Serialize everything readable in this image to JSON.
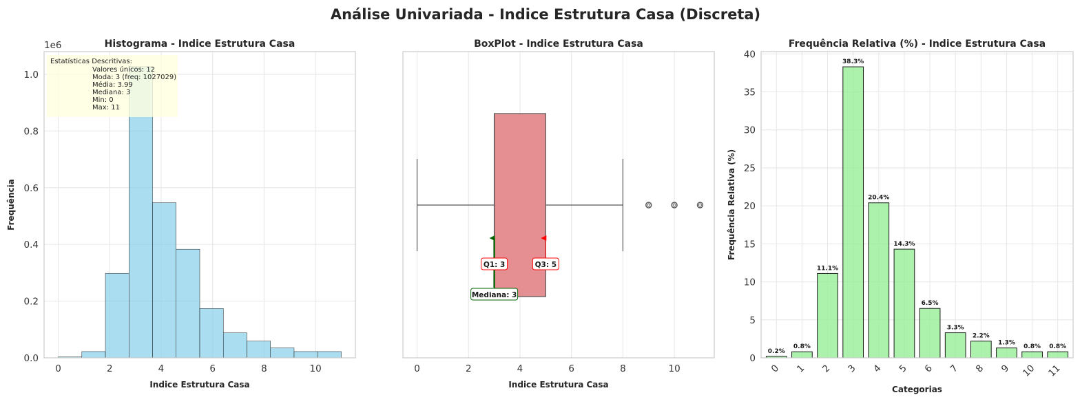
{
  "figure": {
    "title": "Análise Univariada - Indice Estrutura Casa (Discreta)"
  },
  "colors": {
    "histogram": "#87ceeb",
    "box": "#e07b7f",
    "bars": "#90ee90",
    "median_arrow": "#006400",
    "quartile_arrow": "#ff0000",
    "stats_box": "#ffffe0"
  },
  "chart_data": [
    {
      "type": "bar",
      "title": "Histograma - Indice Estrutura Casa",
      "xlabel": "Indice Estrutura Casa",
      "ylabel": "Frequência",
      "y_scale_label": "1e6",
      "xlim": [
        -0.55,
        11.55
      ],
      "ylim": [
        0,
        1.08
      ],
      "grid": true,
      "bins": [
        {
          "start": 0.0,
          "end": 0.9167,
          "value": 0.003
        },
        {
          "start": 0.9167,
          "end": 1.8333,
          "value": 0.022
        },
        {
          "start": 1.8333,
          "end": 2.75,
          "value": 0.298
        },
        {
          "start": 2.75,
          "end": 3.6667,
          "value": 1.027
        },
        {
          "start": 3.6667,
          "end": 4.5833,
          "value": 0.547
        },
        {
          "start": 4.5833,
          "end": 5.5,
          "value": 0.383
        },
        {
          "start": 5.5,
          "end": 6.4167,
          "value": 0.174
        },
        {
          "start": 6.4167,
          "end": 7.3333,
          "value": 0.088
        },
        {
          "start": 7.3333,
          "end": 8.25,
          "value": 0.059
        },
        {
          "start": 8.25,
          "end": 9.1667,
          "value": 0.035
        },
        {
          "start": 9.1667,
          "end": 10.0833,
          "value": 0.022
        },
        {
          "start": 10.0833,
          "end": 11.0,
          "value": 0.022
        }
      ],
      "x_ticks": [
        0,
        2,
        4,
        6,
        8,
        10
      ],
      "y_ticks": [
        0.0,
        0.2,
        0.4,
        0.6,
        0.8,
        1.0
      ],
      "stats_box": {
        "header": "Estatísticas Descritivas:",
        "lines": [
          "Valores únicos: 12",
          "Moda: 3 (freq: 1027029)",
          "Média: 3.99",
          "Mediana: 3",
          "Min: 0",
          "Max: 11"
        ]
      }
    },
    {
      "type": "box",
      "title": "BoxPlot - Indice Estrutura Casa",
      "xlabel": "Indice Estrutura Casa",
      "xlim": [
        -0.55,
        11.55
      ],
      "grid": true,
      "whisker_low": 0,
      "q1": 3,
      "median": 3,
      "q3": 5,
      "whisker_high": 8,
      "outliers": [
        9,
        10,
        11
      ],
      "x_ticks": [
        0,
        2,
        4,
        6,
        8,
        10
      ],
      "annotations": {
        "q1": "Q1: 3",
        "q3": "Q3: 5",
        "median": "Mediana: 3"
      }
    },
    {
      "type": "bar",
      "title": "Frequência Relativa (%) - Indice Estrutura Casa",
      "xlabel": "Categorias",
      "ylabel": "Frequência Relativa (%)",
      "ylim": [
        0,
        40.3
      ],
      "grid": true,
      "categories": [
        "0",
        "1",
        "2",
        "3",
        "4",
        "5",
        "6",
        "7",
        "8",
        "9",
        "10",
        "11"
      ],
      "values": [
        0.2,
        0.8,
        11.1,
        38.3,
        20.4,
        14.3,
        6.5,
        3.3,
        2.2,
        1.3,
        0.8,
        0.8
      ],
      "labels": [
        "0.2%",
        "0.8%",
        "11.1%",
        "38.3%",
        "20.4%",
        "14.3%",
        "6.5%",
        "3.3%",
        "2.2%",
        "1.3%",
        "0.8%",
        "0.8%"
      ],
      "y_ticks": [
        0,
        5,
        10,
        15,
        20,
        25,
        30,
        35,
        40
      ]
    }
  ]
}
